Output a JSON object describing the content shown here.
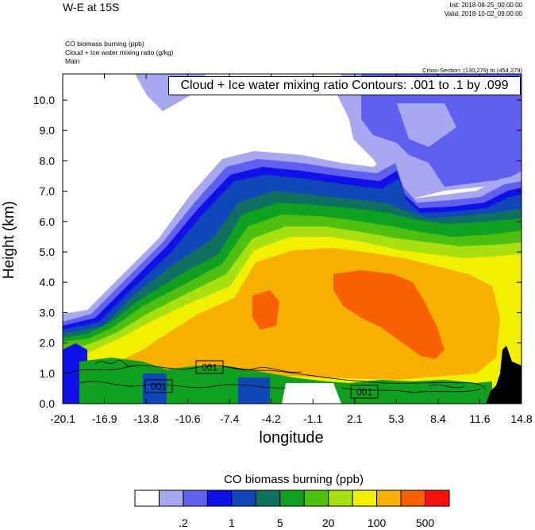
{
  "header": {
    "title": "W-E at 15S",
    "init": "Init: 2018-08-25_00:00:00",
    "valid": "Valid: 2018-10-02_09:00:00"
  },
  "fields": {
    "line1": "CO biomass burning   (ppb)",
    "line2": "Cloud + Ice water mixing ratio   (g/kg)",
    "line3": "Main"
  },
  "cross_section": "Cross-Section: (130,279) to (454,279)",
  "contour_info": "Cloud + Ice water mixing ratio Contours: .001 to .1 by .099",
  "colorbar": {
    "title": "CO biomass burning  (ppb)",
    "tick_labels": [
      ".2",
      "1",
      "5",
      "20",
      "100",
      "500"
    ],
    "colors": [
      "#ffffff",
      "#a8a8f0",
      "#6060f0",
      "#1010e8",
      "#1048b8",
      "#107060",
      "#10a020",
      "#50c010",
      "#a8e010",
      "#f0f000",
      "#f8b000",
      "#f86000",
      "#f81010"
    ]
  },
  "chart_data": {
    "type": "heatmap",
    "title": "W-E at 15S",
    "xlabel": "longitude",
    "ylabel": "Height (km)",
    "x_tick_labels": [
      "-20.1",
      "-16.9",
      "-13.8",
      "-10.6",
      "-7.4",
      "-4.2",
      "-1.1",
      "2.1",
      "5.3",
      "8.4",
      "11.6",
      "14.8"
    ],
    "y_tick_labels": [
      "0.0",
      "1.0",
      "2.0",
      "3.0",
      "4.0",
      "5.0",
      "6.0",
      "7.0",
      "8.0",
      "9.0",
      "10.0"
    ],
    "xlim": [
      -20.1,
      14.8
    ],
    "ylim": [
      0.0,
      10.8
    ],
    "contour_labels": [
      "001",
      "001",
      "001"
    ],
    "colorbar_levels": [
      ".2",
      "1",
      "5",
      "20",
      "100",
      "500"
    ]
  }
}
